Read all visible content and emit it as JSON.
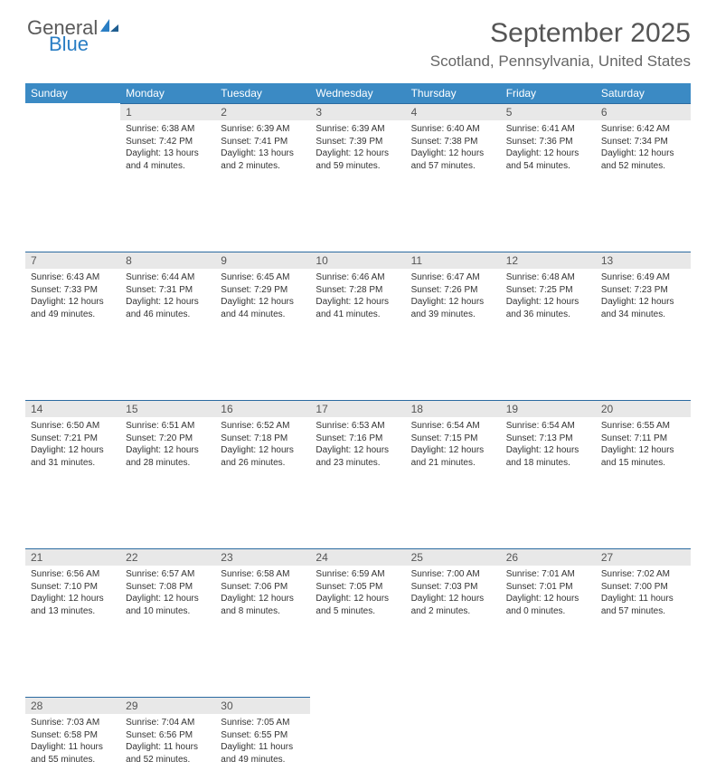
{
  "brand": {
    "word1": "General",
    "word2": "Blue"
  },
  "title": "September 2025",
  "location": "Scotland, Pennsylvania, United States",
  "colors": {
    "header_bg": "#3b8ac4",
    "header_text": "#ffffff",
    "daynum_bg": "#e8e8e8",
    "daynum_border": "#2a6aa0",
    "body_text": "#333333",
    "title_text": "#555555",
    "brand_gray": "#5a5a5a",
    "brand_blue": "#2a7ec4"
  },
  "weekdays": [
    "Sunday",
    "Monday",
    "Tuesday",
    "Wednesday",
    "Thursday",
    "Friday",
    "Saturday"
  ],
  "weeks": [
    [
      null,
      {
        "n": "1",
        "sr": "Sunrise: 6:38 AM",
        "ss": "Sunset: 7:42 PM",
        "dl": "Daylight: 13 hours and 4 minutes."
      },
      {
        "n": "2",
        "sr": "Sunrise: 6:39 AM",
        "ss": "Sunset: 7:41 PM",
        "dl": "Daylight: 13 hours and 2 minutes."
      },
      {
        "n": "3",
        "sr": "Sunrise: 6:39 AM",
        "ss": "Sunset: 7:39 PM",
        "dl": "Daylight: 12 hours and 59 minutes."
      },
      {
        "n": "4",
        "sr": "Sunrise: 6:40 AM",
        "ss": "Sunset: 7:38 PM",
        "dl": "Daylight: 12 hours and 57 minutes."
      },
      {
        "n": "5",
        "sr": "Sunrise: 6:41 AM",
        "ss": "Sunset: 7:36 PM",
        "dl": "Daylight: 12 hours and 54 minutes."
      },
      {
        "n": "6",
        "sr": "Sunrise: 6:42 AM",
        "ss": "Sunset: 7:34 PM",
        "dl": "Daylight: 12 hours and 52 minutes."
      }
    ],
    [
      {
        "n": "7",
        "sr": "Sunrise: 6:43 AM",
        "ss": "Sunset: 7:33 PM",
        "dl": "Daylight: 12 hours and 49 minutes."
      },
      {
        "n": "8",
        "sr": "Sunrise: 6:44 AM",
        "ss": "Sunset: 7:31 PM",
        "dl": "Daylight: 12 hours and 46 minutes."
      },
      {
        "n": "9",
        "sr": "Sunrise: 6:45 AM",
        "ss": "Sunset: 7:29 PM",
        "dl": "Daylight: 12 hours and 44 minutes."
      },
      {
        "n": "10",
        "sr": "Sunrise: 6:46 AM",
        "ss": "Sunset: 7:28 PM",
        "dl": "Daylight: 12 hours and 41 minutes."
      },
      {
        "n": "11",
        "sr": "Sunrise: 6:47 AM",
        "ss": "Sunset: 7:26 PM",
        "dl": "Daylight: 12 hours and 39 minutes."
      },
      {
        "n": "12",
        "sr": "Sunrise: 6:48 AM",
        "ss": "Sunset: 7:25 PM",
        "dl": "Daylight: 12 hours and 36 minutes."
      },
      {
        "n": "13",
        "sr": "Sunrise: 6:49 AM",
        "ss": "Sunset: 7:23 PM",
        "dl": "Daylight: 12 hours and 34 minutes."
      }
    ],
    [
      {
        "n": "14",
        "sr": "Sunrise: 6:50 AM",
        "ss": "Sunset: 7:21 PM",
        "dl": "Daylight: 12 hours and 31 minutes."
      },
      {
        "n": "15",
        "sr": "Sunrise: 6:51 AM",
        "ss": "Sunset: 7:20 PM",
        "dl": "Daylight: 12 hours and 28 minutes."
      },
      {
        "n": "16",
        "sr": "Sunrise: 6:52 AM",
        "ss": "Sunset: 7:18 PM",
        "dl": "Daylight: 12 hours and 26 minutes."
      },
      {
        "n": "17",
        "sr": "Sunrise: 6:53 AM",
        "ss": "Sunset: 7:16 PM",
        "dl": "Daylight: 12 hours and 23 minutes."
      },
      {
        "n": "18",
        "sr": "Sunrise: 6:54 AM",
        "ss": "Sunset: 7:15 PM",
        "dl": "Daylight: 12 hours and 21 minutes."
      },
      {
        "n": "19",
        "sr": "Sunrise: 6:54 AM",
        "ss": "Sunset: 7:13 PM",
        "dl": "Daylight: 12 hours and 18 minutes."
      },
      {
        "n": "20",
        "sr": "Sunrise: 6:55 AM",
        "ss": "Sunset: 7:11 PM",
        "dl": "Daylight: 12 hours and 15 minutes."
      }
    ],
    [
      {
        "n": "21",
        "sr": "Sunrise: 6:56 AM",
        "ss": "Sunset: 7:10 PM",
        "dl": "Daylight: 12 hours and 13 minutes."
      },
      {
        "n": "22",
        "sr": "Sunrise: 6:57 AM",
        "ss": "Sunset: 7:08 PM",
        "dl": "Daylight: 12 hours and 10 minutes."
      },
      {
        "n": "23",
        "sr": "Sunrise: 6:58 AM",
        "ss": "Sunset: 7:06 PM",
        "dl": "Daylight: 12 hours and 8 minutes."
      },
      {
        "n": "24",
        "sr": "Sunrise: 6:59 AM",
        "ss": "Sunset: 7:05 PM",
        "dl": "Daylight: 12 hours and 5 minutes."
      },
      {
        "n": "25",
        "sr": "Sunrise: 7:00 AM",
        "ss": "Sunset: 7:03 PM",
        "dl": "Daylight: 12 hours and 2 minutes."
      },
      {
        "n": "26",
        "sr": "Sunrise: 7:01 AM",
        "ss": "Sunset: 7:01 PM",
        "dl": "Daylight: 12 hours and 0 minutes."
      },
      {
        "n": "27",
        "sr": "Sunrise: 7:02 AM",
        "ss": "Sunset: 7:00 PM",
        "dl": "Daylight: 11 hours and 57 minutes."
      }
    ],
    [
      {
        "n": "28",
        "sr": "Sunrise: 7:03 AM",
        "ss": "Sunset: 6:58 PM",
        "dl": "Daylight: 11 hours and 55 minutes."
      },
      {
        "n": "29",
        "sr": "Sunrise: 7:04 AM",
        "ss": "Sunset: 6:56 PM",
        "dl": "Daylight: 11 hours and 52 minutes."
      },
      {
        "n": "30",
        "sr": "Sunrise: 7:05 AM",
        "ss": "Sunset: 6:55 PM",
        "dl": "Daylight: 11 hours and 49 minutes."
      },
      null,
      null,
      null,
      null
    ]
  ]
}
